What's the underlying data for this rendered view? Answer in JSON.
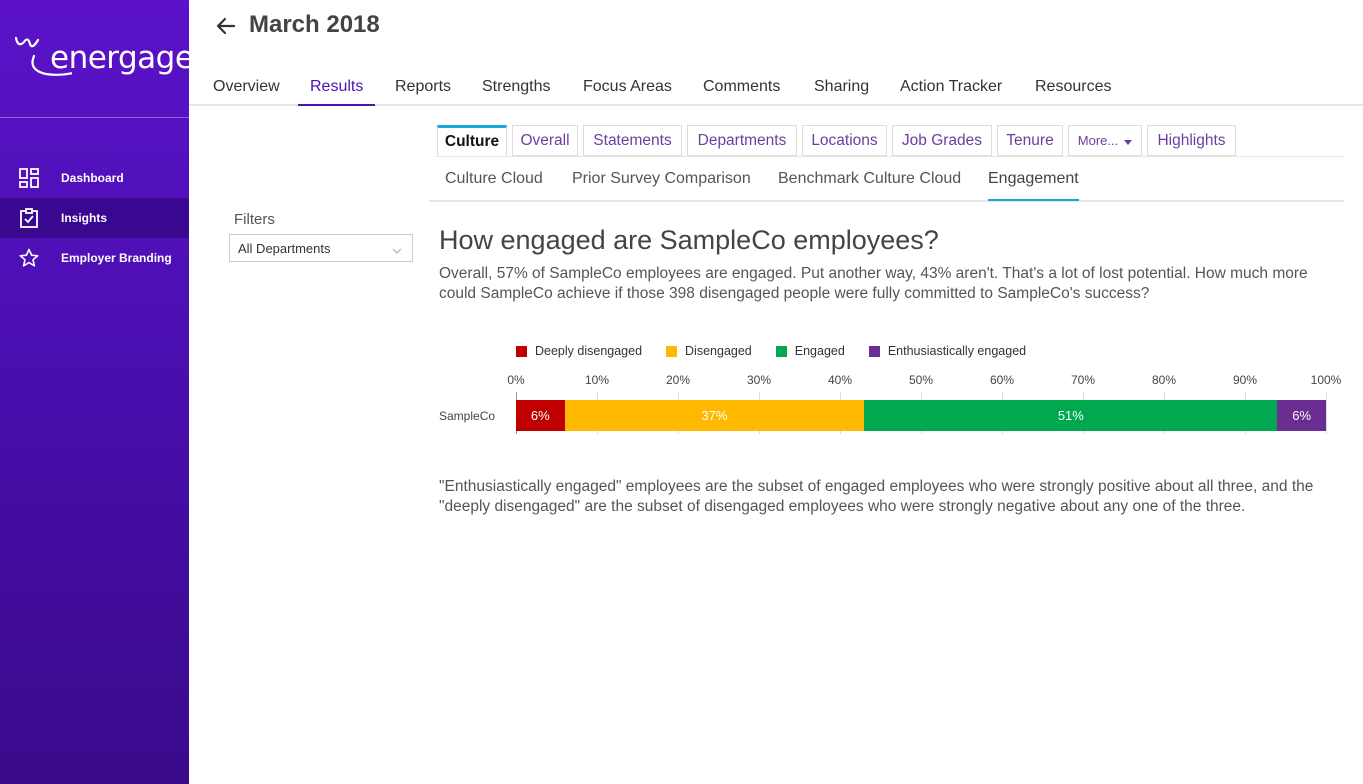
{
  "brand": {
    "logo_text": "energage",
    "accent": "#4b13b5"
  },
  "sidebar": {
    "items": [
      {
        "label": "Dashboard",
        "icon": "dashboard-grid-icon",
        "active": false
      },
      {
        "label": "Insights",
        "icon": "clipboard-check-icon",
        "active": true
      },
      {
        "label": "Employer Branding",
        "icon": "star-icon",
        "active": false
      }
    ]
  },
  "header": {
    "title": "March 2018",
    "tabs": [
      {
        "label": "Overview"
      },
      {
        "label": "Results"
      },
      {
        "label": "Reports"
      },
      {
        "label": "Strengths"
      },
      {
        "label": "Focus Areas"
      },
      {
        "label": "Comments"
      },
      {
        "label": "Sharing"
      },
      {
        "label": "Action Tracker"
      },
      {
        "label": "Resources"
      }
    ],
    "active_tab": "Results"
  },
  "filters": {
    "label": "Filters",
    "department": "All Departments"
  },
  "sub_tabs": [
    {
      "label": "Culture"
    },
    {
      "label": "Overall"
    },
    {
      "label": "Statements"
    },
    {
      "label": "Departments"
    },
    {
      "label": "Locations"
    },
    {
      "label": "Job Grades"
    },
    {
      "label": "Tenure"
    },
    {
      "label": "More..."
    },
    {
      "label": "Highlights"
    }
  ],
  "culture_tabs": [
    {
      "label": "Culture Cloud"
    },
    {
      "label": "Prior Survey Comparison"
    },
    {
      "label": "Benchmark Culture Cloud"
    },
    {
      "label": "Engagement"
    }
  ],
  "content": {
    "title": "How engaged are SampleCo employees?",
    "intro": "Overall, 57% of SampleCo employees are engaged. Put another way, 43% aren't. That's a lot of lost potential. How much more could SampleCo achieve if those 398 disengaged people were fully committed to SampleCo's success?",
    "note": "\"Enthusiastically engaged\" employees are the subset of engaged employees who were strongly positive about all three, and the \"deeply disengaged\" are the subset of disengaged employees who were strongly negative about any one of the three."
  },
  "chart_data": {
    "type": "bar",
    "orientation": "horizontal-stacked",
    "categories": [
      "SampleCo"
    ],
    "xlim": [
      0,
      100
    ],
    "ticks": [
      "0%",
      "10%",
      "20%",
      "30%",
      "40%",
      "50%",
      "60%",
      "70%",
      "80%",
      "90%",
      "100%"
    ],
    "legend_position": "top",
    "grid": true,
    "series": [
      {
        "name": "Deeply disengaged",
        "values": [
          6
        ],
        "label": "6%",
        "color": "#c00000"
      },
      {
        "name": "Disengaged",
        "values": [
          37
        ],
        "label": "37%",
        "color": "#ffb900"
      },
      {
        "name": "Engaged",
        "values": [
          51
        ],
        "label": "51%",
        "color": "#00a94f"
      },
      {
        "name": "Enthusiastically engaged",
        "values": [
          6
        ],
        "label": "6%",
        "color": "#6a2d91"
      }
    ]
  }
}
